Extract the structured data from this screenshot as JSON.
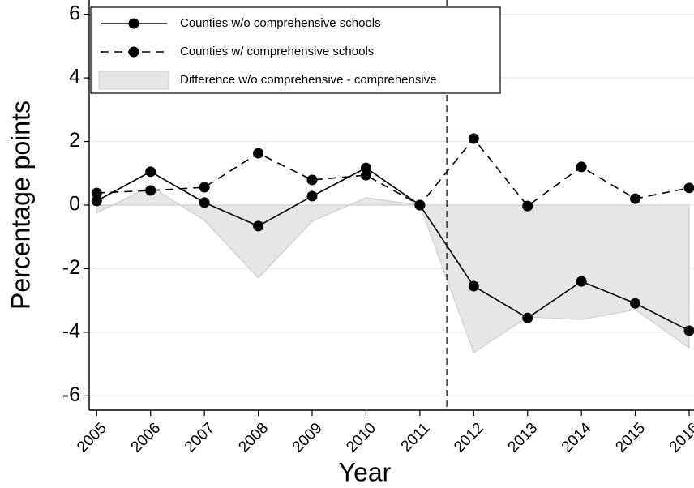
{
  "chart_data": {
    "type": "line",
    "x_label": "Year",
    "y_label": "Percentage points",
    "x": [
      2005,
      2006,
      2007,
      2008,
      2009,
      2010,
      2011,
      2012,
      2013,
      2014,
      2015,
      2016
    ],
    "xlim": [
      2004.86,
      2016.09
    ],
    "xticks": [
      2005,
      2006,
      2007,
      2008,
      2009,
      2010,
      2011,
      2012,
      2013,
      2014,
      2015,
      2016
    ],
    "ylim": [
      -6.45,
      6.45
    ],
    "yticks": [
      -6,
      -4,
      -2,
      0,
      2,
      4,
      6
    ],
    "grid": true,
    "legend": "upper-left",
    "vline_x": 2011.5,
    "series": [
      {
        "name": "Counties w/o comprehensive schools",
        "style": "solid",
        "color": "#000000",
        "values": [
          0.13,
          1.05,
          0.08,
          -0.66,
          0.28,
          1.17,
          0,
          -2.55,
          -3.55,
          -2.4,
          -3.09,
          -3.95
        ]
      },
      {
        "name": "Counties w/ comprehensive schools",
        "style": "dashed",
        "color": "#000000",
        "values": [
          0.38,
          0.46,
          0.56,
          1.63,
          0.79,
          0.94,
          0,
          2.09,
          -0.03,
          1.2,
          0.2,
          0.54
        ]
      },
      {
        "name": "Difference w/o comprehensive - comprehensive",
        "style": "area",
        "color": "#e6e6e6",
        "values": [
          -0.25,
          0.59,
          -0.48,
          -2.29,
          -0.51,
          0.23,
          0,
          -4.64,
          -3.52,
          -3.6,
          -3.29,
          -4.49
        ]
      }
    ]
  }
}
